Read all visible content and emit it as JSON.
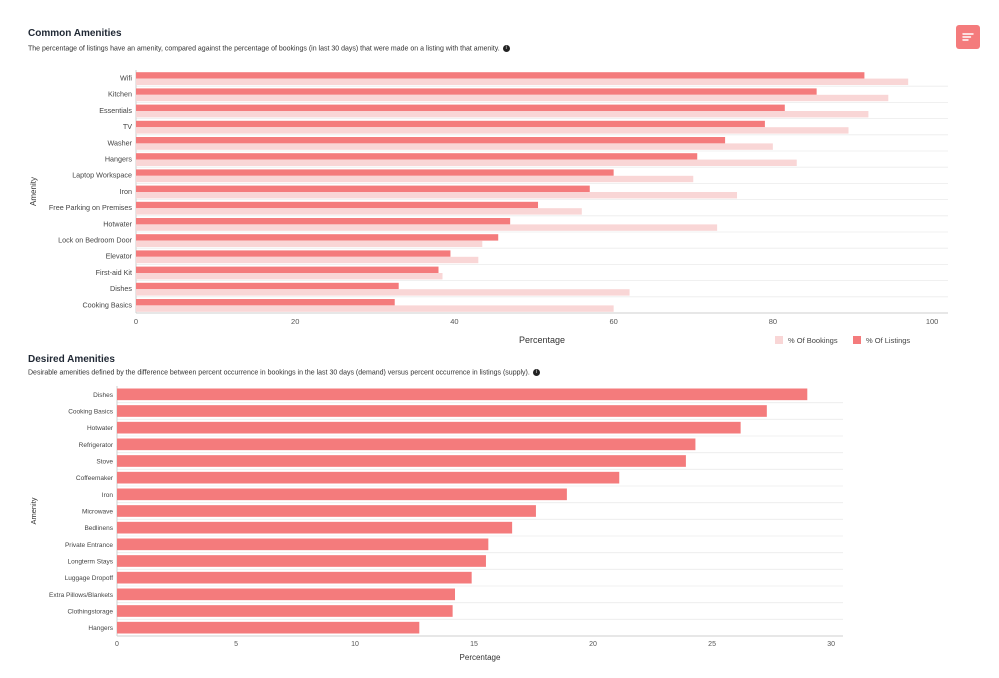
{
  "colors": {
    "listings": "#f47b7c",
    "bookings": "#f9d6d6",
    "accent": "#f47b7c"
  },
  "filter_button": {
    "icon": "filter-lines-icon"
  },
  "common": {
    "title": "Common Amenities",
    "subtitle": "The percentage of listings have an amenity, compared against the percentage of bookings (in last 30 days) that were made on a listing with that amenity.",
    "info_icon": "info-icon"
  },
  "desired": {
    "title": "Desired Amenities",
    "subtitle": "Desirable amenities defined by the difference between percent occurrence in bookings in the last 30 days (demand) versus percent occurrence in listings (supply).",
    "info_icon": "info-icon"
  },
  "chart_data": [
    {
      "type": "bar",
      "orientation": "horizontal",
      "categories": [
        "Wifi",
        "Kitchen",
        "Essentials",
        "TV",
        "Washer",
        "Hangers",
        "Laptop Workspace",
        "Iron",
        "Free Parking on Premises",
        "Hotwater",
        "Lock on Bedroom Door",
        "Elevator",
        "First-aid Kit",
        "Dishes",
        "Cooking Basics"
      ],
      "series": [
        {
          "name": "% Of Listings",
          "values": [
            91.5,
            85.5,
            81.5,
            79,
            74,
            70.5,
            60,
            57,
            50.5,
            47,
            45.5,
            39.5,
            38,
            33,
            32.5
          ]
        },
        {
          "name": "% Of Bookings",
          "values": [
            97,
            94.5,
            92,
            89.5,
            80,
            83,
            70,
            75.5,
            56,
            73,
            43.5,
            43,
            38.5,
            62,
            60
          ]
        }
      ],
      "xlabel": "Percentage",
      "ylabel": "Amenity",
      "xlim": [
        0,
        102
      ],
      "xticks": [
        0,
        20,
        40,
        60,
        80,
        100
      ],
      "grid": true,
      "legend": "bottom-right"
    },
    {
      "type": "bar",
      "orientation": "horizontal",
      "categories": [
        "Dishes",
        "Cooking Basics",
        "Hotwater",
        "Refrigerator",
        "Stove",
        "Coffeemaker",
        "Iron",
        "Microwave",
        "Bedlinens",
        "Private Entrance",
        "Longterm Stays",
        "Luggage Dropoff",
        "Extra Pillows/Blankets",
        "Clothingstorage",
        "Hangers"
      ],
      "series": [
        {
          "name": "",
          "values": [
            29,
            27.3,
            26.2,
            24.3,
            23.9,
            21.1,
            18.9,
            17.6,
            16.6,
            15.6,
            15.5,
            14.9,
            14.2,
            14.1,
            12.7
          ]
        }
      ],
      "xlabel": "Percentage",
      "ylabel": "Amenity",
      "xlim": [
        0,
        30.5
      ],
      "xticks": [
        0,
        5,
        10,
        15,
        20,
        25,
        30
      ],
      "grid": true
    }
  ]
}
